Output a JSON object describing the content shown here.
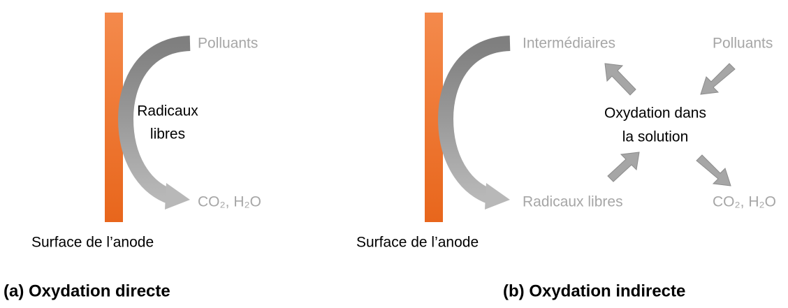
{
  "panel_a": {
    "label_top": "Polluants",
    "label_middle": [
      "Radicaux",
      "libres"
    ],
    "label_bottom": "CO₂, H₂O",
    "surface": "Surface de l’anode",
    "caption": "(a) Oxydation directe"
  },
  "panel_b": {
    "label_top_left": "Intermédiaires",
    "label_top_right": "Polluants",
    "label_center": [
      "Oxydation dans",
      "la solution"
    ],
    "label_bottom_left": "Radicaux libres",
    "label_bottom_right": "CO₂, H₂O",
    "surface": "Surface de l’anode",
    "caption": "(b) Oxydation indirecte"
  }
}
